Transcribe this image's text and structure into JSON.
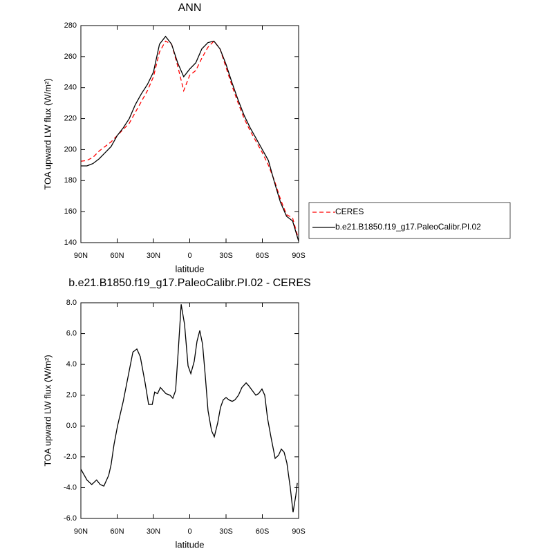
{
  "chart_data": [
    {
      "type": "line",
      "title": "ANN",
      "x_label": "latitude",
      "y_label": "TOA upward LW flux (W/m²)",
      "x": [
        90,
        85,
        80,
        75,
        70,
        65,
        60,
        55,
        50,
        45,
        40,
        35,
        30,
        25,
        20,
        15,
        10,
        5,
        0,
        -5,
        -10,
        -15,
        -20,
        -25,
        -30,
        -35,
        -40,
        -45,
        -50,
        -55,
        -60,
        -65,
        -70,
        -75,
        -80,
        -85,
        -90
      ],
      "xlim": [
        90,
        -90
      ],
      "xticks": [
        {
          "value": 90,
          "label": "90N"
        },
        {
          "value": 60,
          "label": "60N"
        },
        {
          "value": 30,
          "label": "30N"
        },
        0,
        {
          "value": -30,
          "label": "30S"
        },
        {
          "value": -60,
          "label": "60S"
        },
        {
          "value": -90,
          "label": "90S"
        }
      ],
      "ylim": [
        140,
        280
      ],
      "yticks": [
        140,
        160,
        180,
        200,
        220,
        240,
        260,
        280
      ],
      "legend": "right",
      "series": [
        {
          "name": "CERES",
          "color": "#ff0000",
          "dash": "dashed",
          "values": [
            192.5,
            193,
            195,
            199,
            202,
            205,
            209,
            213,
            217,
            224,
            231,
            238,
            247,
            263,
            270,
            268,
            254,
            238,
            248,
            251,
            259,
            266,
            270,
            265,
            253,
            241,
            230,
            220,
            212,
            205,
            198,
            190,
            180,
            168,
            158,
            156,
            142
          ]
        },
        {
          "name": "b.e21.B1850.f19_g17.PaleoCalibr.PI.02",
          "color": "#000000",
          "dash": "solid",
          "values": [
            189.5,
            189.5,
            191,
            194,
            198,
            202,
            209,
            214,
            220,
            229,
            236,
            242,
            250,
            268,
            273,
            268,
            256,
            247,
            252,
            256,
            265,
            269,
            270,
            265,
            255,
            243,
            232,
            222,
            214,
            207,
            200,
            193,
            179,
            166,
            157,
            154,
            141
          ]
        }
      ]
    },
    {
      "type": "line",
      "title": "b.e21.B1850.f19_g17.PaleoCalibr.PI.02 - CERES",
      "x_label": "latitude",
      "y_label": "TOA upward LW flux (W/m²)",
      "x": [
        90,
        85,
        81,
        77,
        74,
        71,
        67,
        65,
        62.6,
        59.7,
        55,
        51,
        47,
        43.7,
        40.9,
        36.9,
        34,
        31,
        29,
        26.6,
        24.3,
        19.7,
        16.3,
        14,
        11.7,
        9.4,
        7.1,
        4.3,
        1.4,
        -0.9,
        -3.7,
        -6,
        -8.3,
        -10.6,
        -12.9,
        -15.1,
        -18,
        -20.3,
        -23.1,
        -25.4,
        -27.7,
        -30,
        -32.3,
        -35.1,
        -37.4,
        -40.3,
        -43.1,
        -46.6,
        -48.9,
        -51.7,
        -54.6,
        -56.9,
        -59.7,
        -62,
        -64.3,
        -67.1,
        -70.6,
        -73.4,
        -75.7,
        -78,
        -80.3,
        -83.1,
        -85.4,
        -87.7,
        -88.9
      ],
      "xlim": [
        90,
        -90
      ],
      "xticks": [
        {
          "value": 90,
          "label": "90N"
        },
        {
          "value": 60,
          "label": "60N"
        },
        {
          "value": 30,
          "label": "30N"
        },
        0,
        {
          "value": -30,
          "label": "30S"
        },
        {
          "value": -60,
          "label": "60S"
        },
        {
          "value": -90,
          "label": "90S"
        }
      ],
      "ylim": [
        -6,
        8
      ],
      "yticks": [
        {
          "value": -6,
          "label": "-6.0"
        },
        {
          "value": -4,
          "label": "-4.0"
        },
        {
          "value": -2,
          "label": "-2.0"
        },
        {
          "value": 0,
          "label": "0.0"
        },
        {
          "value": 2,
          "label": "2.0"
        },
        {
          "value": 4,
          "label": "4.0"
        },
        {
          "value": 6,
          "label": "6.0"
        },
        {
          "value": 8,
          "label": "8.0"
        }
      ],
      "series": [
        {
          "color": "#000000",
          "dash": "solid",
          "values": [
            -2.8,
            -3.5,
            -3.8,
            -3.5,
            -3.8,
            -3.9,
            -3.2,
            -2.5,
            -1.2,
            0,
            1.6,
            3.2,
            4.8,
            5.0,
            4.5,
            2.8,
            1.4,
            1.4,
            2.2,
            2.1,
            2.5,
            2.1,
            2.0,
            1.8,
            2.3,
            5.0,
            7.9,
            6.6,
            3.9,
            3.4,
            4.2,
            5.5,
            6.2,
            5.3,
            3.2,
            1.0,
            -0.3,
            -0.7,
            0.2,
            1.2,
            1.7,
            1.85,
            1.7,
            1.6,
            1.7,
            2.0,
            2.5,
            2.8,
            2.6,
            2.3,
            2.0,
            2.1,
            2.4,
            2.0,
            0.5,
            -0.7,
            -2.1,
            -1.9,
            -1.5,
            -1.7,
            -2.4,
            -4.0,
            -5.6,
            -4.5,
            -3.7
          ]
        }
      ]
    }
  ]
}
